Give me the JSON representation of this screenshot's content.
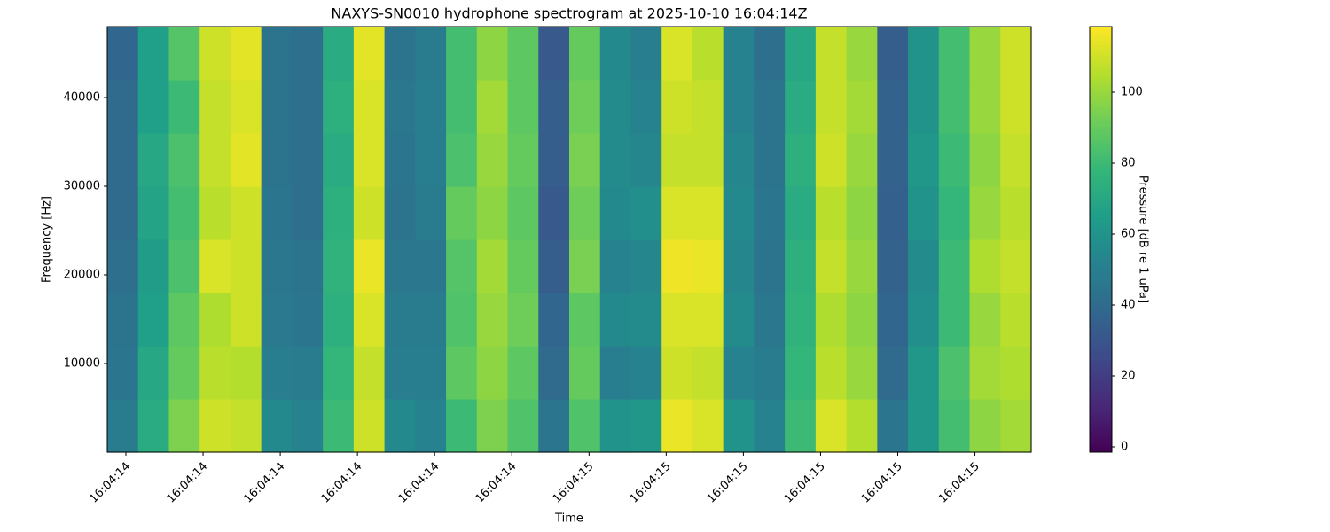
{
  "chart_data": {
    "type": "heatmap",
    "title": "NAXYS-SN0010 hydrophone spectrogram at 2025-10-10 16:04:14Z",
    "x_label": "Time",
    "y_label": "Frequency [Hz]",
    "colorbar_label": "Pressure [dB re 1 uPa]",
    "colormap": "viridis",
    "x_tick_labels": [
      "16:04:14",
      "16:04:14",
      "16:04:14",
      "16:04:14",
      "16:04:14",
      "16:04:14",
      "16:04:15",
      "16:04:15",
      "16:04:15",
      "16:04:15",
      "16:04:15",
      "16:04:15"
    ],
    "ylim": [
      0,
      48000
    ],
    "yticks": [
      10000,
      20000,
      30000,
      40000
    ],
    "clim": [
      -1.5,
      118.5
    ],
    "cticks": [
      0,
      20,
      40,
      60,
      80,
      100
    ],
    "z": [
      [
        48,
        72,
        95,
        110,
        108,
        55,
        52,
        80,
        110,
        55,
        52,
        80,
        95,
        85,
        45,
        85,
        60,
        62,
        115,
        112,
        60,
        52,
        80,
        112,
        105,
        45,
        62,
        82,
        98,
        102
      ],
      [
        45,
        70,
        90,
        106,
        105,
        50,
        48,
        78,
        108,
        50,
        50,
        88,
        98,
        88,
        40,
        90,
        50,
        52,
        110,
        108,
        52,
        48,
        78,
        106,
        100,
        40,
        62,
        84,
        102,
        104
      ],
      [
        44,
        66,
        88,
        104,
        110,
        47,
        45,
        74,
        112,
        48,
        48,
        85,
        100,
        92,
        38,
        88,
        55,
        56,
        112,
        112,
        56,
        46,
        76,
        104,
        98,
        38,
        58,
        80,
        100,
        106
      ],
      [
        42,
        64,
        84,
        112,
        110,
        46,
        44,
        76,
        115,
        46,
        46,
        86,
        102,
        90,
        34,
        94,
        52,
        54,
        116,
        115,
        54,
        44,
        74,
        108,
        100,
        36,
        56,
        80,
        104,
        108
      ],
      [
        40,
        68,
        82,
        106,
        110,
        45,
        42,
        74,
        110,
        44,
        48,
        90,
        98,
        88,
        32,
        92,
        55,
        58,
        112,
        112,
        55,
        45,
        72,
        106,
        98,
        35,
        60,
        78,
        100,
        106
      ],
      [
        40,
        70,
        84,
        108,
        114,
        44,
        42,
        72,
        112,
        45,
        50,
        84,
        100,
        90,
        34,
        94,
        56,
        54,
        108,
        108,
        54,
        44,
        74,
        110,
        100,
        36,
        62,
        80,
        98,
        108
      ],
      [
        40,
        66,
        80,
        108,
        112,
        44,
        42,
        74,
        112,
        46,
        50,
        82,
        102,
        88,
        34,
        92,
        56,
        52,
        110,
        108,
        52,
        44,
        72,
        108,
        102,
        36,
        60,
        82,
        100,
        110
      ],
      [
        38,
        66,
        86,
        110,
        114,
        44,
        42,
        72,
        114,
        44,
        48,
        82,
        98,
        88,
        32,
        90,
        55,
        50,
        112,
        106,
        52,
        42,
        70,
        108,
        100,
        34,
        60,
        82,
        100,
        110
      ]
    ]
  }
}
